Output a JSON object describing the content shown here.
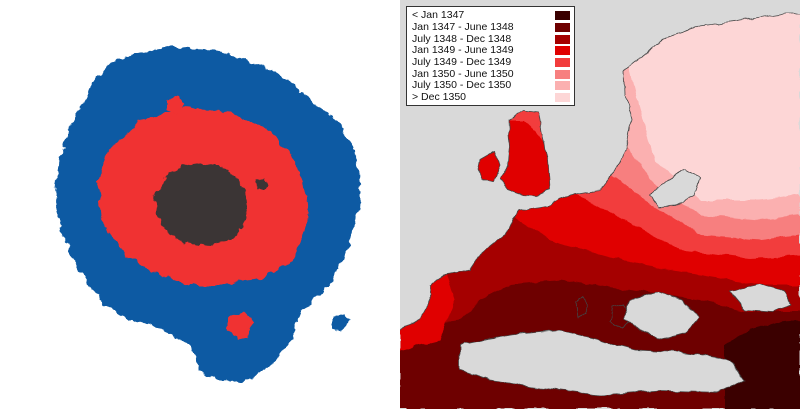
{
  "legend": {
    "entries": [
      {
        "label": "< Jan 1347",
        "color": "#3a0000"
      },
      {
        "label": "Jan 1347 - June 1348",
        "color": "#6e0000"
      },
      {
        "label": "July 1348 - Dec 1348",
        "color": "#a50000"
      },
      {
        "label": "Jan 1349 - June 1349",
        "color": "#e00000"
      },
      {
        "label": "July 1349 - Dec 1349",
        "color": "#f23c3c"
      },
      {
        "label": "Jan 1350 - June 1350",
        "color": "#f77f7f"
      },
      {
        "label": "July 1350 - Dec 1350",
        "color": "#fbb0b0"
      },
      {
        "label": "> Dec 1350",
        "color": "#fdd6d6"
      }
    ]
  },
  "simulation": {
    "colors": {
      "outer": "#0b5aa3",
      "middle": "#f03030",
      "core": "#3a3435"
    }
  },
  "map": {
    "colors": {
      "sea": "#d9d9d9",
      "unaffected": "#ffffff",
      "coast": "#444444"
    }
  }
}
